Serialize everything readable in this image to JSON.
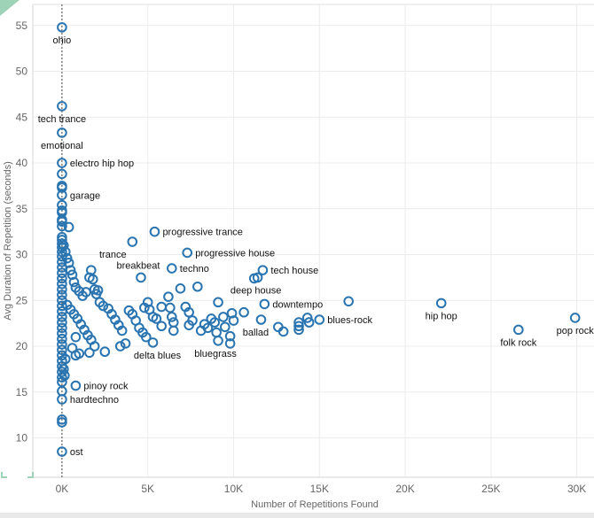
{
  "chart_data": {
    "type": "scatter",
    "xlabel": "Number of Repetitions Found",
    "ylabel": "Avg Duration of Repetition (seconds)",
    "xlim": [
      -1700,
      31000
    ],
    "ylim": [
      5.7,
      57.3
    ],
    "x_ticks": [
      0,
      5000,
      10000,
      15000,
      20000,
      25000,
      30000
    ],
    "x_tick_labels": [
      "0K",
      "5K",
      "10K",
      "15K",
      "20K",
      "25K",
      "30K"
    ],
    "y_ticks": [
      10,
      15,
      20,
      25,
      30,
      35,
      40,
      45,
      50,
      55
    ],
    "y_tick_labels": [
      "10",
      "15",
      "20",
      "25",
      "30",
      "35",
      "40",
      "45",
      "50",
      "55"
    ],
    "grid": true,
    "reference_line_x": 0,
    "marker": "hollow-circle",
    "color": "#2a74b0",
    "labeled_points": [
      {
        "label": "ohio",
        "x": 0,
        "y": 54.8
      },
      {
        "label": "tech trance",
        "x": 0,
        "y": 46.2
      },
      {
        "label": "emotional",
        "x": 0,
        "y": 43.3
      },
      {
        "label": "electro hip hop",
        "x": 0,
        "y": 40.0
      },
      {
        "label": "garage",
        "x": 0,
        "y": 36.5
      },
      {
        "label": "progressive trance",
        "x": 5400,
        "y": 32.5
      },
      {
        "label": "trance",
        "x": 4100,
        "y": 31.4
      },
      {
        "label": "progressive house",
        "x": 7300,
        "y": 30.2
      },
      {
        "label": "breakbeat",
        "x": 4600,
        "y": 27.5
      },
      {
        "label": "techno",
        "x": 6400,
        "y": 28.5
      },
      {
        "label": "tech house",
        "x": 11700,
        "y": 28.3
      },
      {
        "label": "deep house",
        "x": 11400,
        "y": 27.5
      },
      {
        "label": "downtempo",
        "x": 11800,
        "y": 24.6
      },
      {
        "label": "blues-rock",
        "x": 15000,
        "y": 22.9
      },
      {
        "label": "ballad",
        "x": 11600,
        "y": 22.9
      },
      {
        "label": "hip hop",
        "x": 22100,
        "y": 24.7
      },
      {
        "label": "folk rock",
        "x": 26600,
        "y": 21.8
      },
      {
        "label": "pop rock",
        "x": 29900,
        "y": 23.1
      },
      {
        "label": "delta blues",
        "x": 5300,
        "y": 20.4
      },
      {
        "label": "bluegrass",
        "x": 9100,
        "y": 20.6
      },
      {
        "label": "pinoy rock",
        "x": 800,
        "y": 15.7
      },
      {
        "label": "hardtechno",
        "x": 0,
        "y": 14.2
      },
      {
        "label": "ost",
        "x": 0,
        "y": 8.5
      }
    ],
    "points": [
      [
        0,
        38.8
      ],
      [
        0,
        37.5
      ],
      [
        0,
        37.3
      ],
      [
        0,
        35.4
      ],
      [
        0,
        34.8
      ],
      [
        0,
        34.6
      ],
      [
        0,
        33.8
      ],
      [
        0,
        33.6
      ],
      [
        400,
        33.0
      ],
      [
        0,
        33.1
      ],
      [
        0,
        31.9
      ],
      [
        0,
        31.6
      ],
      [
        0,
        31.2
      ],
      [
        0,
        30.8
      ],
      [
        0,
        30.3
      ],
      [
        0,
        29.8
      ],
      [
        0,
        29.2
      ],
      [
        0,
        28.6
      ],
      [
        0,
        28.0
      ],
      [
        0,
        27.4
      ],
      [
        0,
        26.8
      ],
      [
        0,
        26.2
      ],
      [
        0,
        25.6
      ],
      [
        0,
        25.0
      ],
      [
        0,
        24.4
      ],
      [
        0,
        23.8
      ],
      [
        0,
        23.2
      ],
      [
        0,
        22.6
      ],
      [
        0,
        22.0
      ],
      [
        0,
        21.4
      ],
      [
        0,
        20.8
      ],
      [
        0,
        20.2
      ],
      [
        0,
        19.6
      ],
      [
        0,
        19.0
      ],
      [
        0,
        18.4
      ],
      [
        0,
        17.8
      ],
      [
        0,
        17.2
      ],
      [
        0,
        16.6
      ],
      [
        0,
        16.1
      ],
      [
        0,
        15.1
      ],
      [
        0,
        12.0
      ],
      [
        0,
        11.7
      ],
      [
        100,
        17.5
      ],
      [
        150,
        16.8
      ],
      [
        200,
        18.6
      ],
      [
        100,
        31.0
      ],
      [
        200,
        30.3
      ],
      [
        300,
        29.6
      ],
      [
        400,
        29.1
      ],
      [
        500,
        28.3
      ],
      [
        600,
        27.8
      ],
      [
        700,
        27.0
      ],
      [
        800,
        26.4
      ],
      [
        1000,
        26.0
      ],
      [
        1200,
        25.5
      ],
      [
        1400,
        25.9
      ],
      [
        1600,
        27.5
      ],
      [
        1700,
        28.3
      ],
      [
        1800,
        27.3
      ],
      [
        1900,
        26.2
      ],
      [
        2000,
        25.7
      ],
      [
        2100,
        26.1
      ],
      [
        2200,
        24.8
      ],
      [
        300,
        24.5
      ],
      [
        500,
        24.0
      ],
      [
        700,
        23.5
      ],
      [
        900,
        23.0
      ],
      [
        1100,
        22.4
      ],
      [
        1300,
        21.8
      ],
      [
        1500,
        21.2
      ],
      [
        1700,
        20.7
      ],
      [
        1900,
        20.0
      ],
      [
        800,
        21.0
      ],
      [
        600,
        19.8
      ],
      [
        1000,
        19.2
      ],
      [
        1600,
        19.3
      ],
      [
        2500,
        19.4
      ],
      [
        800,
        19.0
      ],
      [
        2400,
        24.4
      ],
      [
        2700,
        24.1
      ],
      [
        2900,
        23.5
      ],
      [
        3100,
        22.9
      ],
      [
        3300,
        22.3
      ],
      [
        3500,
        21.7
      ],
      [
        3700,
        20.3
      ],
      [
        3400,
        20.0
      ],
      [
        3900,
        23.9
      ],
      [
        4100,
        23.5
      ],
      [
        4300,
        22.8
      ],
      [
        4500,
        22.0
      ],
      [
        4700,
        21.5
      ],
      [
        4900,
        21.0
      ],
      [
        4800,
        24.2
      ],
      [
        5000,
        24.8
      ],
      [
        5100,
        24.0
      ],
      [
        5300,
        23.2
      ],
      [
        5500,
        23.0
      ],
      [
        5800,
        22.2
      ],
      [
        5800,
        24.3
      ],
      [
        6200,
        25.4
      ],
      [
        6300,
        24.2
      ],
      [
        6400,
        23.2
      ],
      [
        6500,
        22.6
      ],
      [
        6500,
        21.7
      ],
      [
        6900,
        26.3
      ],
      [
        7200,
        24.3
      ],
      [
        7400,
        23.7
      ],
      [
        7600,
        22.8
      ],
      [
        7400,
        22.3
      ],
      [
        7900,
        26.5
      ],
      [
        8100,
        21.7
      ],
      [
        8300,
        22.4
      ],
      [
        8500,
        22.0
      ],
      [
        8700,
        23.0
      ],
      [
        8900,
        22.6
      ],
      [
        9000,
        21.5
      ],
      [
        9100,
        24.8
      ],
      [
        9400,
        23.2
      ],
      [
        9500,
        22.1
      ],
      [
        9800,
        20.3
      ],
      [
        9800,
        21.1
      ],
      [
        9900,
        23.6
      ],
      [
        10000,
        22.8
      ],
      [
        10600,
        23.7
      ],
      [
        12600,
        22.1
      ],
      [
        12900,
        21.6
      ],
      [
        13800,
        22.6
      ],
      [
        13800,
        22.2
      ],
      [
        13800,
        21.8
      ],
      [
        14300,
        23.1
      ],
      [
        14400,
        22.6
      ],
      [
        16700,
        24.9
      ],
      [
        11200,
        27.4
      ]
    ]
  }
}
